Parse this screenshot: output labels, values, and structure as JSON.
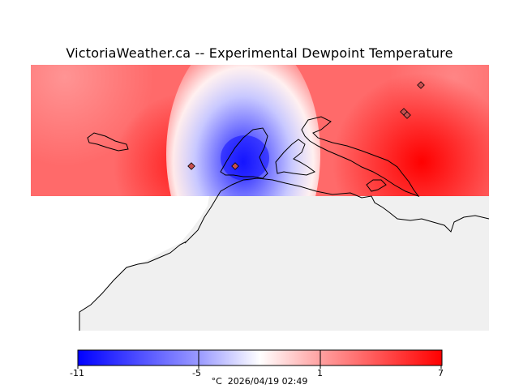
{
  "title": "VictoriaWeather.ca -- Experimental Dewpoint Temperature",
  "legend": {
    "ticks": [
      "-11",
      "-5",
      "1",
      "7"
    ],
    "tick_values": [
      -11,
      -5,
      1,
      7
    ],
    "min": -11,
    "max": 7,
    "unit": "°C",
    "timestamp": "2026/04/19 02:49",
    "colors": {
      "low": "#0000ff",
      "mid": "#ffffff",
      "high": "#ff0000"
    }
  },
  "colors": {
    "land": "#f0f0f0",
    "coast": "#000000",
    "station_marker": "#c85050"
  }
}
